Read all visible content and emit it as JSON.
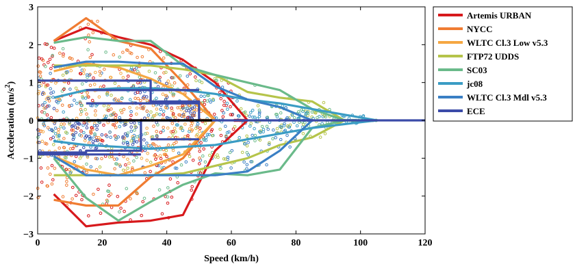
{
  "chart_data": {
    "type": "line",
    "title": "",
    "xlabel": "Speed (km/h)",
    "ylabel_main": "Acceleration (m/s",
    "ylabel_sup": "2",
    "ylabel_close": ")",
    "xlim": [
      0,
      120
    ],
    "ylim": [
      -3,
      3
    ],
    "xticks": [
      "0",
      "20",
      "40",
      "60",
      "80",
      "100",
      "120"
    ],
    "yticks": [
      "−3",
      "−2",
      "−1",
      "0",
      "1",
      "2",
      "3"
    ],
    "grid": false,
    "legend_position": "right",
    "series": [
      {
        "name": "Artemis URBAN",
        "color": "#d7191c",
        "x": [
          5,
          15,
          25,
          35,
          45,
          55,
          65,
          55,
          45,
          35,
          25,
          15,
          5
        ],
        "y": [
          -1.95,
          -2.8,
          -2.7,
          -2.65,
          -2.5,
          -0.8,
          0,
          1.0,
          1.6,
          2.0,
          2.2,
          2.45,
          2.1
        ]
      },
      {
        "name": "NYCC",
        "color": "#f07c32",
        "x": [
          5,
          15,
          25,
          35,
          45,
          55,
          45,
          35,
          25,
          15,
          5
        ],
        "y": [
          -2.1,
          -2.25,
          -2.25,
          -1.5,
          -1.0,
          0,
          1.0,
          1.9,
          2.1,
          2.7,
          2.1
        ]
      },
      {
        "name": "WLTC Cl.3 Low v5.3",
        "color": "#f5a742",
        "x": [
          5,
          15,
          25,
          35,
          45,
          55,
          45,
          35,
          25,
          15,
          5
        ],
        "y": [
          -0.95,
          -1.3,
          -1.45,
          -1.2,
          -0.9,
          0,
          0.7,
          1.1,
          1.4,
          1.5,
          1.3
        ]
      },
      {
        "name": "FTP72 UDDS",
        "color": "#b5c44a",
        "x": [
          5,
          15,
          25,
          35,
          45,
          55,
          65,
          75,
          85,
          95,
          85,
          75,
          65,
          55,
          45,
          35,
          25,
          15,
          5
        ],
        "y": [
          -1.45,
          -1.45,
          -1.45,
          -1.45,
          -1.4,
          -1.2,
          -1.0,
          -0.65,
          -0.45,
          0,
          0.5,
          0.6,
          0.75,
          1.2,
          1.35,
          1.45,
          1.45,
          1.45,
          1.45
        ]
      },
      {
        "name": "SC03",
        "color": "#6aba8a",
        "x": [
          5,
          15,
          25,
          35,
          45,
          55,
          65,
          75,
          85,
          95,
          105,
          95,
          85,
          75,
          65,
          55,
          45,
          35,
          25,
          15,
          5
        ],
        "y": [
          -1.0,
          -2.05,
          -2.65,
          -2.15,
          -1.7,
          -1.4,
          -1.45,
          -1.3,
          -0.2,
          0,
          0,
          0,
          0.3,
          0.8,
          1.0,
          1.2,
          1.45,
          2.1,
          2.1,
          2.2,
          2.05
        ]
      },
      {
        "name": "jc08",
        "color": "#3a9cc4",
        "x": [
          5,
          15,
          25,
          35,
          45,
          55,
          65,
          75,
          85,
          95,
          105,
          95,
          85,
          75,
          65,
          55,
          45,
          35,
          25,
          15,
          5
        ],
        "y": [
          -0.55,
          -0.65,
          -0.7,
          -0.75,
          -0.7,
          -0.65,
          -0.5,
          -0.35,
          -0.2,
          -0.1,
          0,
          0.15,
          0.3,
          0.45,
          0.55,
          0.7,
          0.8,
          0.85,
          0.85,
          0.8,
          0.6
        ]
      },
      {
        "name": "WLTC Cl.3 Mdl v5.3",
        "color": "#3a7fc4",
        "x": [
          5,
          15,
          25,
          35,
          45,
          55,
          65,
          75,
          85,
          75,
          65,
          55,
          45,
          35,
          25,
          15,
          5
        ],
        "y": [
          -0.95,
          -1.45,
          -1.45,
          -1.45,
          -1.45,
          -1.45,
          -1.35,
          -0.8,
          0,
          0.35,
          0.55,
          0.9,
          1.5,
          1.5,
          1.55,
          1.55,
          1.4
        ]
      },
      {
        "name": "ECE",
        "color": "#3b4ba8",
        "x": [
          0,
          15,
          15,
          32,
          32,
          50,
          50,
          50,
          35,
          35,
          0
        ],
        "y": [
          -0.85,
          -0.85,
          -0.8,
          -0.8,
          0,
          0,
          0.5,
          0.5,
          0.5,
          1.05,
          1.05
        ]
      }
    ],
    "extra_lines": [
      {
        "x": [
          0,
          120
        ],
        "y": [
          0,
          0
        ],
        "color": "#3b4ba8"
      },
      {
        "x": [
          0,
          54
        ],
        "y": [
          0,
          0
        ],
        "color": "#000000"
      },
      {
        "x": [
          15,
          50
        ],
        "y": [
          0.45,
          0.45
        ],
        "color": "#3b4ba8"
      },
      {
        "x": [
          15,
          50
        ],
        "y": [
          0.8,
          0.8
        ],
        "color": "#3b4ba8"
      },
      {
        "x": [
          35,
          50
        ],
        "y": [
          -0.5,
          -0.5
        ],
        "color": "#3b4ba8"
      },
      {
        "x": [
          0,
          32
        ],
        "y": [
          -0.9,
          -0.9
        ],
        "color": "#3b4ba8"
      }
    ]
  }
}
